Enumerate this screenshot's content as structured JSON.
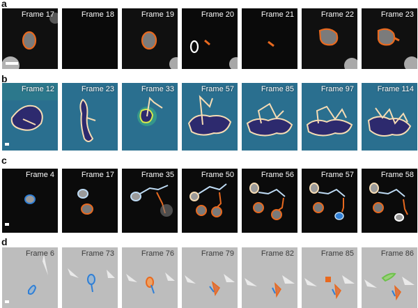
{
  "panels": [
    {
      "letter": "a",
      "style": "dark",
      "frames": [
        "Frame 17",
        "Frame 18",
        "Frame 19",
        "Frame 20",
        "Frame 21",
        "Frame 22",
        "Frame 23"
      ]
    },
    {
      "letter": "b",
      "style": "viridis",
      "frames": [
        "Frame 12",
        "Frame 23",
        "Frame 33",
        "Frame 57",
        "Frame 85",
        "Frame 97",
        "Frame 114"
      ]
    },
    {
      "letter": "c",
      "style": "dark",
      "frames": [
        "Frame 4",
        "Frame 17",
        "Frame 35",
        "Frame 50",
        "Frame 56",
        "Frame 57",
        "Frame 58"
      ]
    },
    {
      "letter": "d",
      "style": "gray",
      "frames": [
        "Frame 6",
        "Frame 73",
        "Frame 76",
        "Frame 79",
        "Frame 82",
        "Frame 85",
        "Frame 86"
      ]
    }
  ],
  "colors": {
    "orange": "#e8691f",
    "cream": "#f6dcb4",
    "blue": "#2f7fd6",
    "light_blue": "#bfdcf5",
    "green": "#6cc24a",
    "dark_bg": "#0b0b0b",
    "viridis_bg": "#2a6f8f",
    "gray_bg": "#bdbdbd"
  }
}
